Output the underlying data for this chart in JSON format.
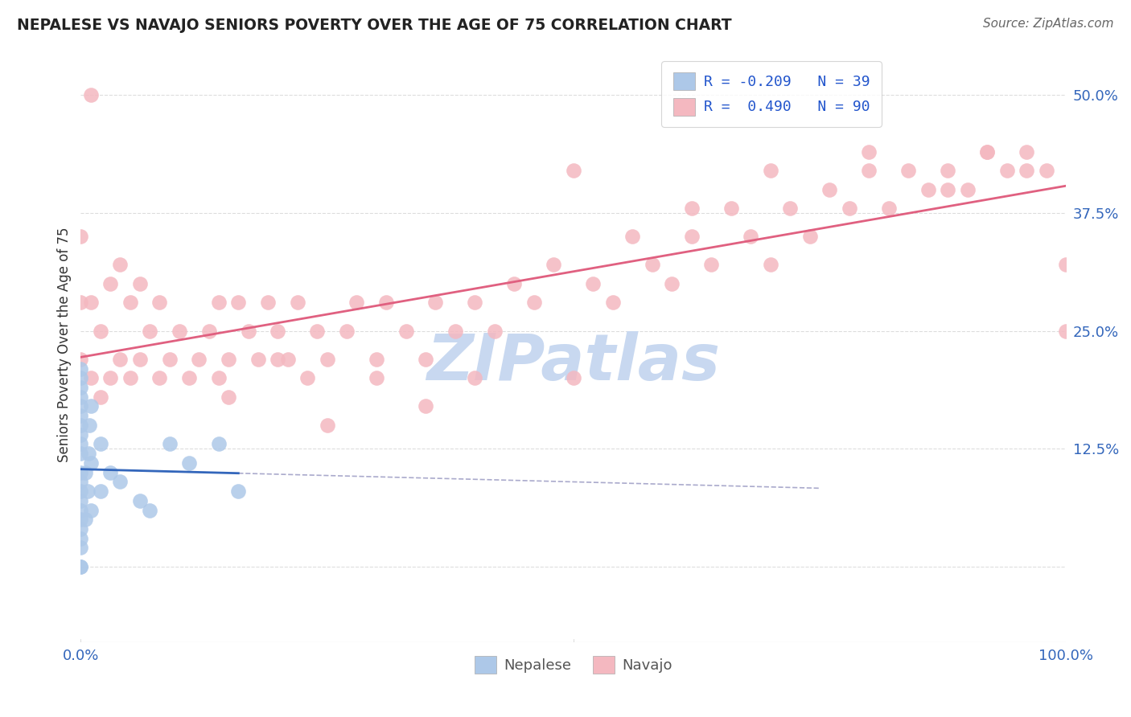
{
  "title": "NEPALESE VS NAVAJO SENIORS POVERTY OVER THE AGE OF 75 CORRELATION CHART",
  "source": "Source: ZipAtlas.com",
  "ylabel": "Seniors Poverty Over the Age of 75",
  "xlim": [
    0,
    1.0
  ],
  "ylim": [
    -0.08,
    0.55
  ],
  "x_ticks": [
    0.0,
    0.5,
    1.0
  ],
  "x_tick_labels": [
    "0.0%",
    "",
    "100.0%"
  ],
  "y_ticks": [
    0.0,
    0.125,
    0.25,
    0.375,
    0.5
  ],
  "y_tick_labels": [
    "",
    "12.5%",
    "25.0%",
    "37.5%",
    "50.0%"
  ],
  "nepalese_color": "#adc8e8",
  "navajo_color": "#f4b8c0",
  "trend_nepalese_color": "#3366bb",
  "trend_navajo_color": "#e06080",
  "nepalese_R": -0.209,
  "nepalese_N": 39,
  "navajo_R": 0.49,
  "navajo_N": 90,
  "legend_R_color": "#2255cc",
  "watermark": "ZIPatlas",
  "watermark_color": "#c8d8f0",
  "background_color": "#ffffff",
  "grid_color": "#dddddd",
  "nepalese_scatter_x": [
    0.0,
    0.0,
    0.0,
    0.0,
    0.0,
    0.0,
    0.0,
    0.0,
    0.0,
    0.0,
    0.0,
    0.0,
    0.0,
    0.0,
    0.0,
    0.0,
    0.0,
    0.0,
    0.0,
    0.0,
    0.0,
    0.005,
    0.005,
    0.007,
    0.008,
    0.009,
    0.01,
    0.01,
    0.01,
    0.02,
    0.02,
    0.03,
    0.04,
    0.06,
    0.07,
    0.09,
    0.11,
    0.14,
    0.16
  ],
  "nepalese_scatter_y": [
    0.0,
    0.0,
    0.02,
    0.03,
    0.04,
    0.05,
    0.06,
    0.07,
    0.08,
    0.09,
    0.1,
    0.12,
    0.13,
    0.14,
    0.15,
    0.16,
    0.17,
    0.18,
    0.19,
    0.2,
    0.21,
    0.05,
    0.1,
    0.08,
    0.12,
    0.15,
    0.06,
    0.11,
    0.17,
    0.08,
    0.13,
    0.1,
    0.09,
    0.07,
    0.06,
    0.13,
    0.11,
    0.13,
    0.08
  ],
  "navajo_scatter_x": [
    0.0,
    0.0,
    0.0,
    0.01,
    0.01,
    0.01,
    0.02,
    0.02,
    0.03,
    0.03,
    0.04,
    0.04,
    0.05,
    0.05,
    0.06,
    0.06,
    0.07,
    0.08,
    0.08,
    0.09,
    0.1,
    0.11,
    0.12,
    0.13,
    0.14,
    0.14,
    0.15,
    0.16,
    0.17,
    0.18,
    0.19,
    0.2,
    0.21,
    0.22,
    0.23,
    0.24,
    0.25,
    0.27,
    0.28,
    0.3,
    0.31,
    0.33,
    0.35,
    0.36,
    0.38,
    0.4,
    0.42,
    0.44,
    0.46,
    0.48,
    0.5,
    0.52,
    0.54,
    0.56,
    0.58,
    0.6,
    0.62,
    0.64,
    0.66,
    0.68,
    0.7,
    0.72,
    0.74,
    0.76,
    0.78,
    0.8,
    0.82,
    0.84,
    0.86,
    0.88,
    0.9,
    0.92,
    0.94,
    0.96,
    0.98,
    1.0,
    0.5,
    0.62,
    0.7,
    0.8,
    0.88,
    0.92,
    0.96,
    1.0,
    0.15,
    0.2,
    0.25,
    0.3,
    0.35,
    0.4
  ],
  "navajo_scatter_y": [
    0.22,
    0.28,
    0.35,
    0.2,
    0.28,
    0.5,
    0.18,
    0.25,
    0.2,
    0.3,
    0.22,
    0.32,
    0.2,
    0.28,
    0.22,
    0.3,
    0.25,
    0.2,
    0.28,
    0.22,
    0.25,
    0.2,
    0.22,
    0.25,
    0.2,
    0.28,
    0.22,
    0.28,
    0.25,
    0.22,
    0.28,
    0.25,
    0.22,
    0.28,
    0.2,
    0.25,
    0.22,
    0.25,
    0.28,
    0.22,
    0.28,
    0.25,
    0.22,
    0.28,
    0.25,
    0.28,
    0.25,
    0.3,
    0.28,
    0.32,
    0.2,
    0.3,
    0.28,
    0.35,
    0.32,
    0.3,
    0.35,
    0.32,
    0.38,
    0.35,
    0.32,
    0.38,
    0.35,
    0.4,
    0.38,
    0.42,
    0.38,
    0.42,
    0.4,
    0.42,
    0.4,
    0.44,
    0.42,
    0.44,
    0.42,
    0.32,
    0.42,
    0.38,
    0.42,
    0.44,
    0.4,
    0.44,
    0.42,
    0.25,
    0.18,
    0.22,
    0.15,
    0.2,
    0.17,
    0.2
  ]
}
